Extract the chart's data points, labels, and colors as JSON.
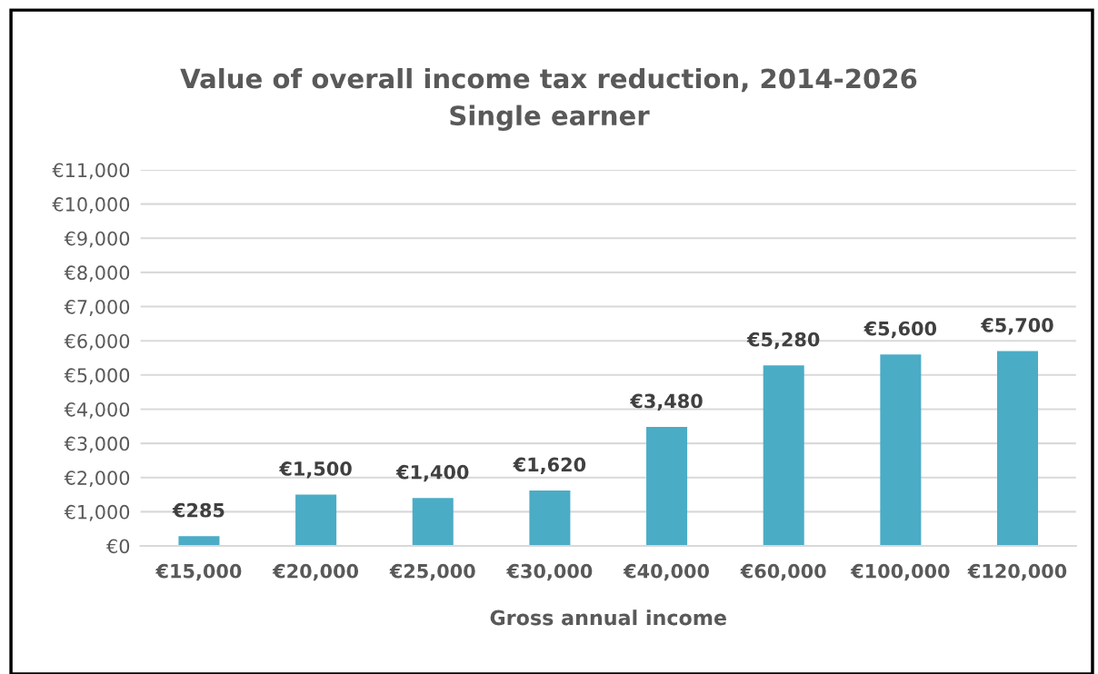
{
  "chart_data": {
    "type": "bar",
    "title": "Value of overall income tax reduction, 2014-2026",
    "subtitle": "Single earner",
    "xlabel": "Gross annual income",
    "categories": [
      "€15,000",
      "€20,000",
      "€25,000",
      "€30,000",
      "€40,000",
      "€60,000",
      "€100,000",
      "€120,000"
    ],
    "values": [
      285,
      1500,
      1400,
      1620,
      3480,
      5280,
      5600,
      5700
    ],
    "value_labels": [
      "€285",
      "€1,500",
      "€1,400",
      "€1,620",
      "€3,480",
      "€5,280",
      "€5,600",
      "€5,700"
    ],
    "color": "#4bacc6",
    "ylim": [
      0,
      11000
    ],
    "yticks": [
      {
        "value": 0,
        "label": "€0"
      },
      {
        "value": 1000,
        "label": "€1,000"
      },
      {
        "value": 2000,
        "label": "€2,000"
      },
      {
        "value": 3000,
        "label": "€3,000"
      },
      {
        "value": 4000,
        "label": "€4,000"
      },
      {
        "value": 5000,
        "label": "€5,000"
      },
      {
        "value": 6000,
        "label": "€6,000"
      },
      {
        "value": 7000,
        "label": "€7,000"
      },
      {
        "value": 8000,
        "label": "€8,000"
      },
      {
        "value": 9000,
        "label": "€9,000"
      },
      {
        "value": 10000,
        "label": "€10,000"
      },
      {
        "value": 11000,
        "label": "€11,000"
      }
    ],
    "grid": "y",
    "legend": false
  }
}
